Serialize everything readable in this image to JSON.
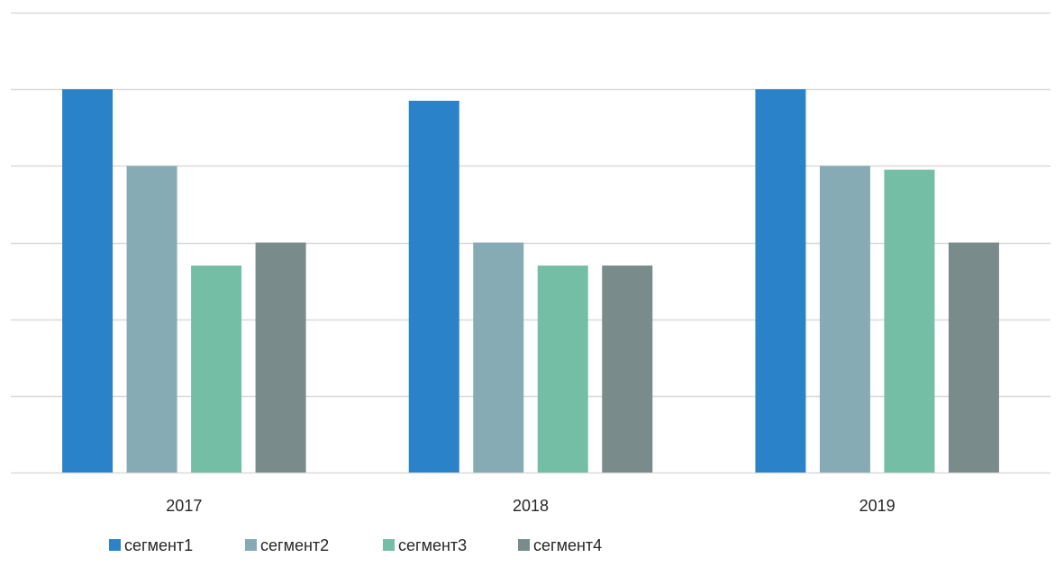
{
  "chart_data": {
    "type": "bar",
    "categories": [
      "2017",
      "2018",
      "2019"
    ],
    "series": [
      {
        "name": "сегмент1",
        "color": "#2a83c8",
        "values": [
          5,
          4.85,
          5
        ]
      },
      {
        "name": "сегмент2",
        "color": "#86abb5",
        "values": [
          4,
          3,
          4
        ]
      },
      {
        "name": "сегмент3",
        "color": "#75bea6",
        "values": [
          2.7,
          2.7,
          3.95
        ]
      },
      {
        "name": "сегмент4",
        "color": "#7a8b8c",
        "values": [
          3,
          2.7,
          3
        ]
      }
    ],
    "ylim": [
      0,
      6
    ],
    "y_gridlines": [
      0,
      1,
      2,
      3,
      4,
      5,
      6
    ],
    "y_tick_labels_shown": false,
    "grid": true,
    "legend_position": "bottom",
    "gridline_color": "#d9d9d9"
  }
}
